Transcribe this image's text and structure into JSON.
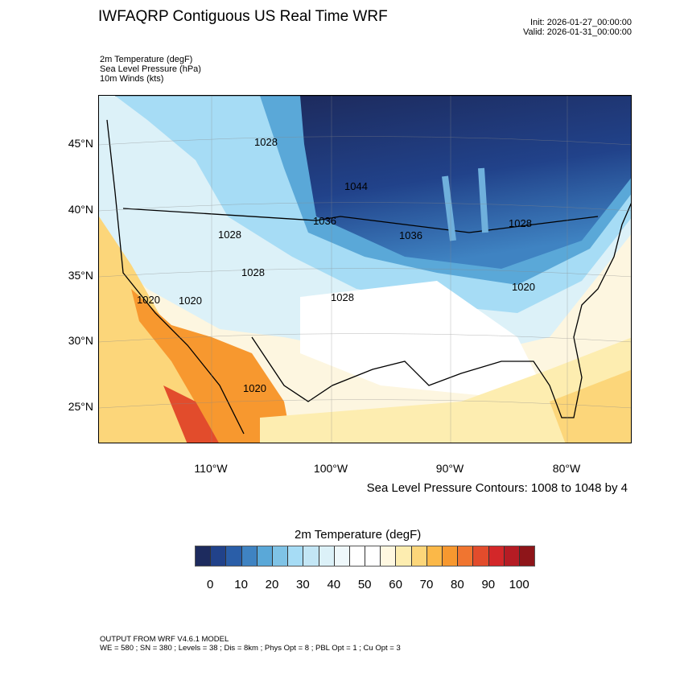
{
  "header": {
    "title": "IWFAQRP Contiguous US Real Time WRF",
    "init": "Init: 2026-01-27_00:00:00",
    "valid": "Valid: 2026-01-31_00:00:00",
    "fields": [
      "2m Temperature   (degF)",
      "Sea Level Pressure   (hPa)",
      "10m Winds   (kts)"
    ]
  },
  "map": {
    "lat_labels": [
      "45°N",
      "40°N",
      "35°N",
      "30°N",
      "25°N"
    ],
    "lon_labels": [
      "110°W",
      "100°W",
      "90°W",
      "80°W"
    ],
    "contour_labels": [
      "1028",
      "1044",
      "1036",
      "1036",
      "1028",
      "1028",
      "1028",
      "1020",
      "1020",
      "1020",
      "1028",
      "1020"
    ],
    "slp_note": "Sea Level Pressure Contours: 1008 to 1048 by 4"
  },
  "colorbar": {
    "title": "2m Temperature  (degF)",
    "colors": [
      "#1d2b5e",
      "#21428a",
      "#2a5ea8",
      "#3f83c2",
      "#5aa8d8",
      "#7fc3e6",
      "#a6dcf5",
      "#c3e6f5",
      "#dcf1f8",
      "#eff8fb",
      "#ffffff",
      "#ffffff",
      "#fff8e1",
      "#fdedb0",
      "#fcd67a",
      "#fbb848",
      "#f7982f",
      "#f07530",
      "#e24c2c",
      "#d32729",
      "#b51c24",
      "#8e1519"
    ],
    "labels": [
      "0",
      "10",
      "20",
      "30",
      "40",
      "50",
      "60",
      "70",
      "80",
      "90",
      "100"
    ]
  },
  "footer": {
    "line1": "OUTPUT FROM WRF V4.6.1 MODEL",
    "line2": "WE = 580 ; SN = 380 ; Levels = 38 ; Dis = 8km ; Phys Opt = 8 ; PBL Opt = 1 ; Cu Opt = 3"
  }
}
